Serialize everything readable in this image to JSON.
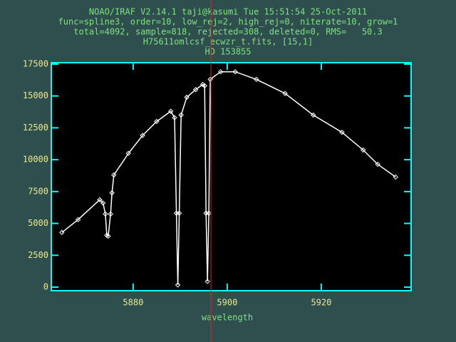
{
  "chart_data": {
    "type": "line",
    "title_lines": [
      "NOAO/IRAF V2.14.1 taji@kasumi Tue 15:51:54 25-Oct-2011",
      "func=spline3, order=10, low_rej=2, high_rej=0, niterate=10, grow=1",
      "total=4092, sample=818, rejected=308, deleted=0, RMS=   50.3",
      "H75611omlcsf_ecwzr_t.fits, [15,1]",
      "HD 153855"
    ],
    "x_label": "wavelength",
    "x": [
      5864.85,
      5868.3,
      5872.9,
      5873.6,
      5874.1,
      5874.4,
      5874.7,
      5875.2,
      5875.5,
      5875.9,
      5879,
      5882,
      5885,
      5888,
      5888.8,
      5889.2,
      5889.5,
      5889.8,
      5890.2,
      5891.4,
      5893.3,
      5894.8,
      5895.2,
      5895.5,
      5895.8,
      5896.1,
      5896.4,
      5898.6,
      5901.7,
      5906.2,
      5912.3,
      5918.3,
      5924.4,
      5928.9,
      5932,
      5935.8
    ],
    "values": [
      4290,
      5300,
      6860,
      6600,
      5740,
      4070,
      4000,
      5740,
      7400,
      8800,
      10500,
      11900,
      13000,
      13800,
      13300,
      5800,
      170,
      5800,
      13500,
      14900,
      15500,
      15900,
      15800,
      5800,
      450,
      5800,
      16300,
      16900,
      16900,
      16300,
      15200,
      13500,
      12150,
      10760,
      9640,
      8640
    ],
    "color": "#ffffff",
    "axis_color": "#00ffff",
    "xlim": [
      5862.6,
      5939.1
    ],
    "ylim": [
      -280,
      17610
    ],
    "xticks": [
      5880,
      5900,
      5920
    ],
    "yticks": [
      0,
      2500,
      5000,
      7500,
      10000,
      12500,
      15000,
      17500
    ]
  }
}
